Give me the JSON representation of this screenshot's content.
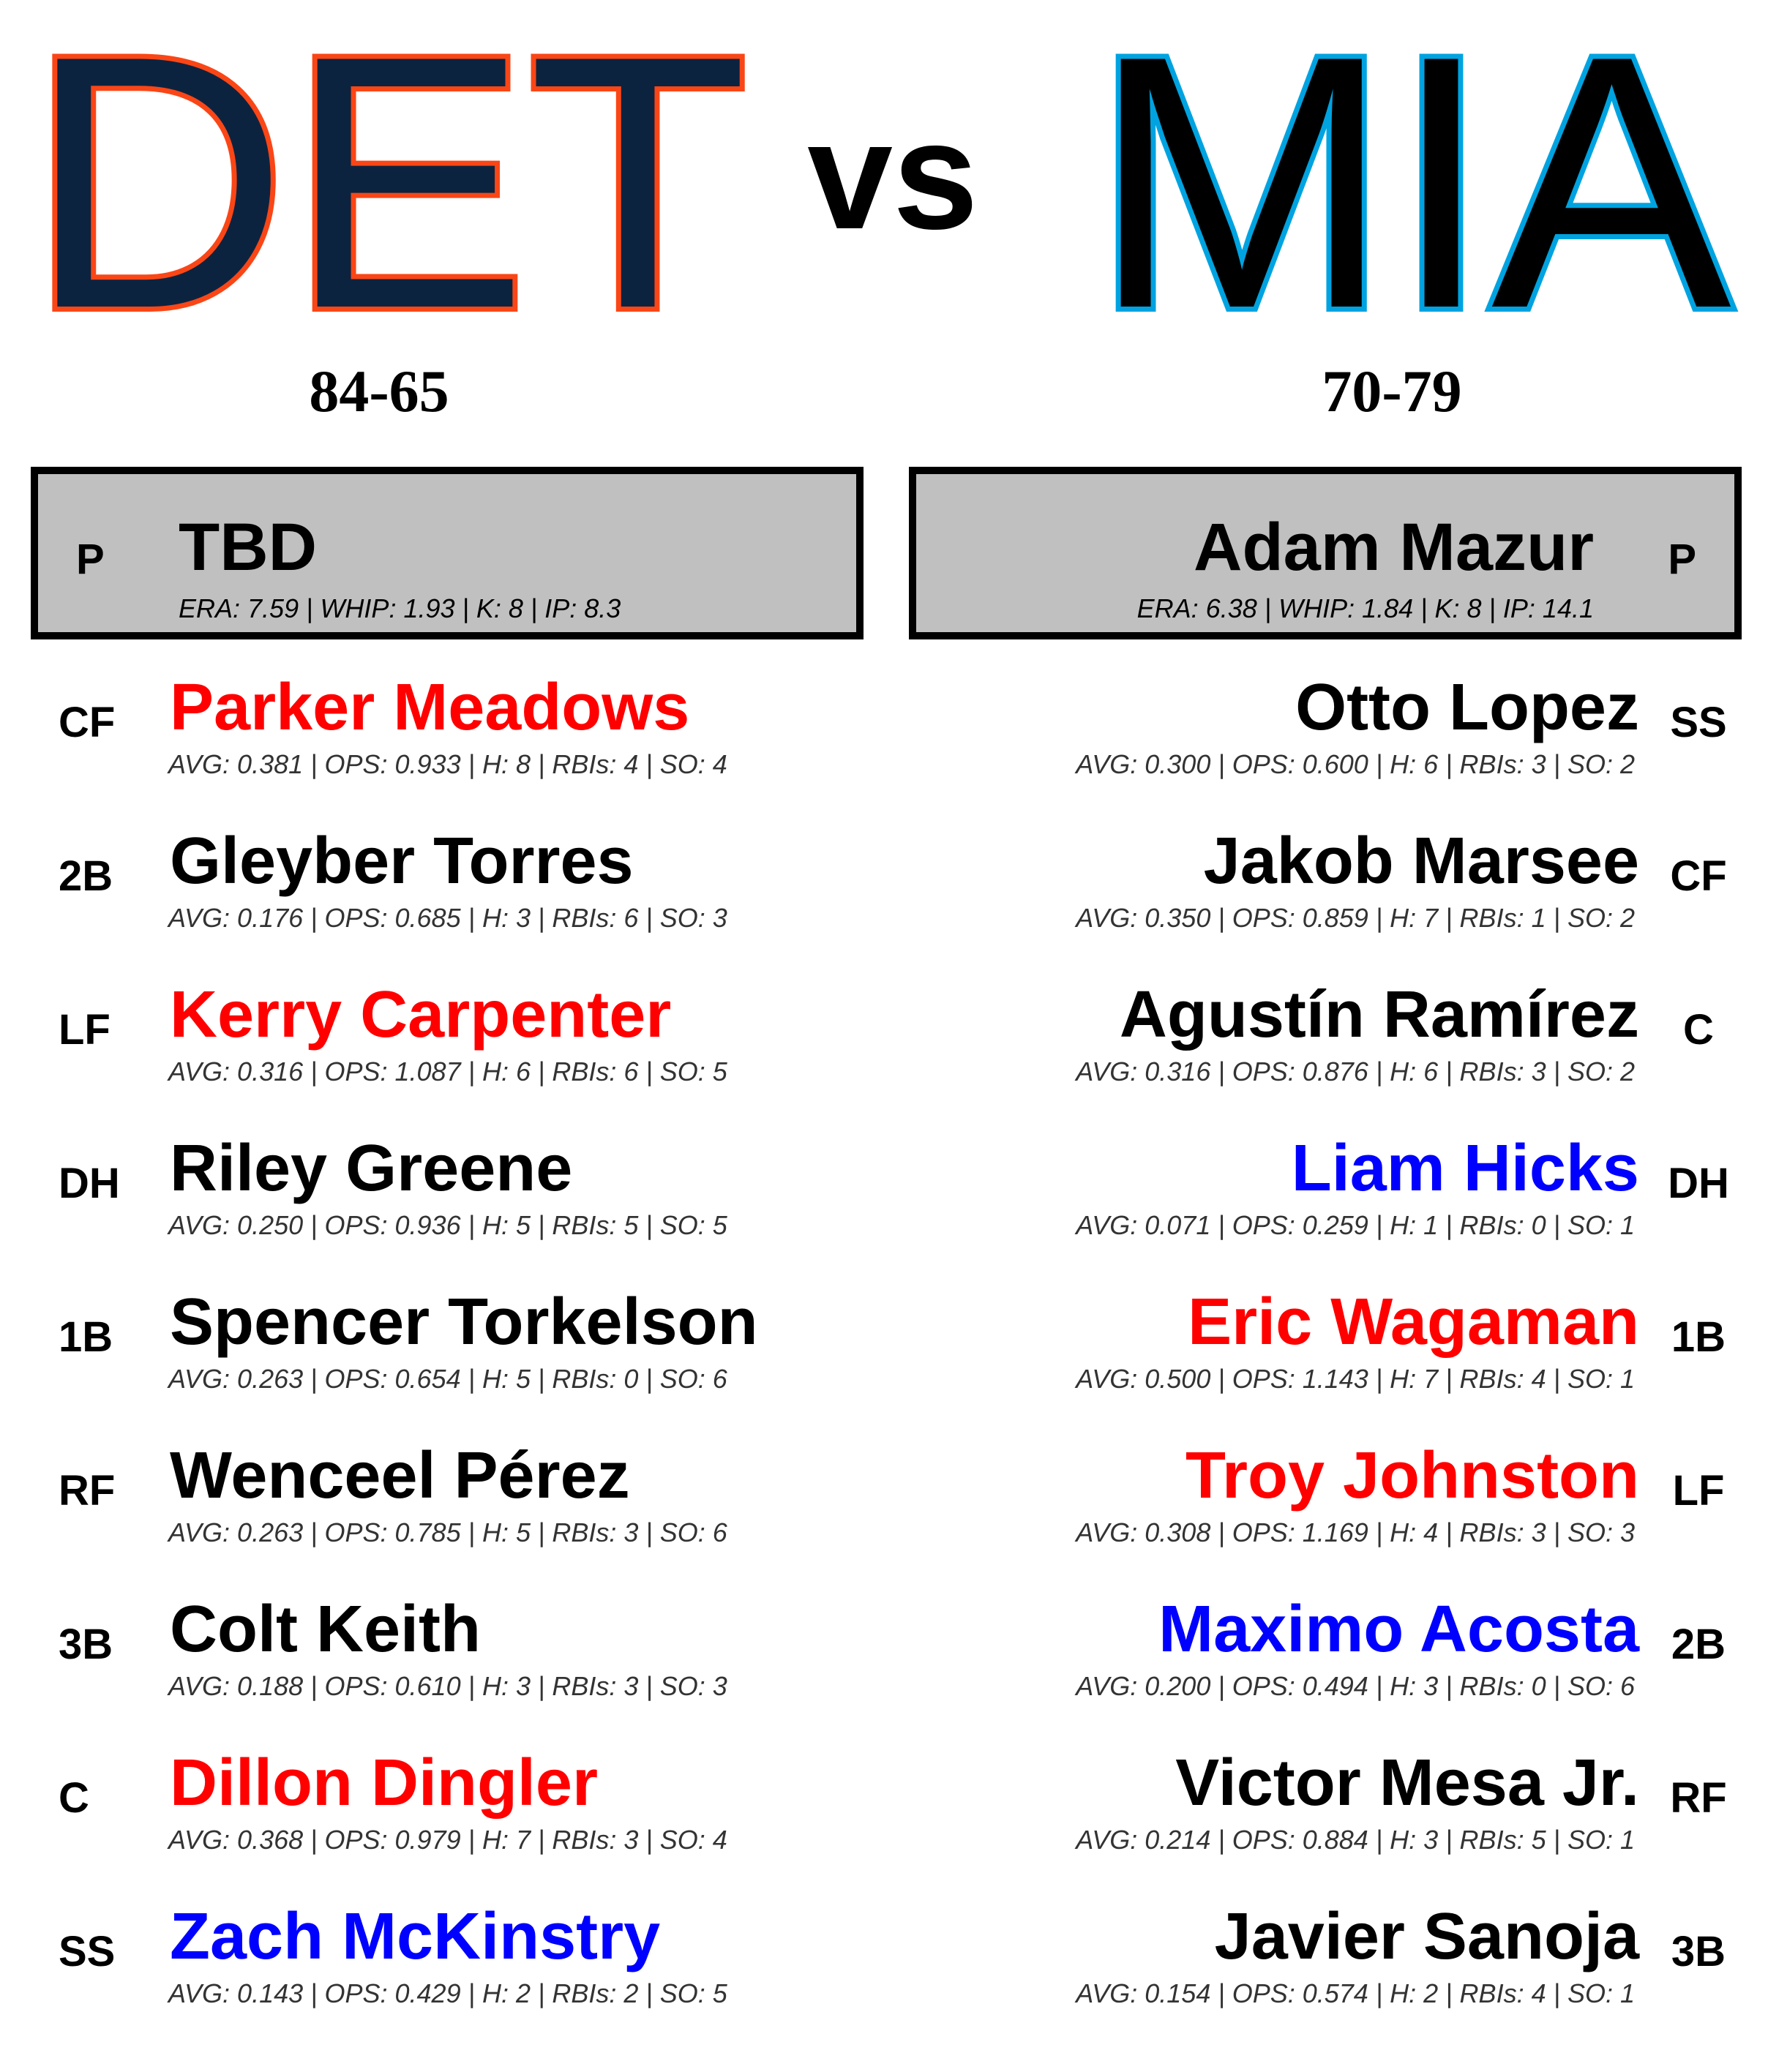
{
  "header": {
    "vs_label": "vs",
    "away": {
      "abbr": "DET",
      "record": "84-65",
      "fill_color": "#0C2340",
      "stroke_color": "#FA4616"
    },
    "home": {
      "abbr": "MIA",
      "record": "70-79",
      "fill_color": "#000000",
      "stroke_color": "#00A3E0"
    }
  },
  "pitchers": {
    "away": {
      "pos": "P",
      "name": "TBD",
      "stats": "ERA: 7.59 | WHIP: 1.93 | K: 8 | IP: 8.3"
    },
    "home": {
      "pos": "P",
      "name": "Adam Mazur",
      "stats": "ERA: 6.38 | WHIP: 1.84 | K: 8 | IP: 14.1"
    }
  },
  "colors": {
    "hot": "#FF0000",
    "cold": "#0000FF",
    "neutral": "#000000"
  },
  "lineups": {
    "away": [
      {
        "pos": "CF",
        "name": "Parker Meadows",
        "stats": "AVG: 0.381 | OPS: 0.933 | H: 8 | RBIs: 4 | SO: 4",
        "color": "#FF0000"
      },
      {
        "pos": "2B",
        "name": "Gleyber Torres",
        "stats": "AVG: 0.176 | OPS: 0.685 | H: 3 | RBIs: 6 | SO: 3",
        "color": "#000000"
      },
      {
        "pos": "LF",
        "name": "Kerry Carpenter",
        "stats": "AVG: 0.316 | OPS: 1.087 | H: 6 | RBIs: 6 | SO: 5",
        "color": "#FF0000"
      },
      {
        "pos": "DH",
        "name": "Riley Greene",
        "stats": "AVG: 0.250 | OPS: 0.936 | H: 5 | RBIs: 5 | SO: 5",
        "color": "#000000"
      },
      {
        "pos": "1B",
        "name": "Spencer Torkelson",
        "stats": "AVG: 0.263 | OPS: 0.654 | H: 5 | RBIs: 0 | SO: 6",
        "color": "#000000"
      },
      {
        "pos": "RF",
        "name": "Wenceel Pérez",
        "stats": "AVG: 0.263 | OPS: 0.785 | H: 5 | RBIs: 3 | SO: 6",
        "color": "#000000"
      },
      {
        "pos": "3B",
        "name": "Colt Keith",
        "stats": "AVG: 0.188 | OPS: 0.610 | H: 3 | RBIs: 3 | SO: 3",
        "color": "#000000"
      },
      {
        "pos": "C",
        "name": "Dillon Dingler",
        "stats": "AVG: 0.368 | OPS: 0.979 | H: 7 | RBIs: 3 | SO: 4",
        "color": "#FF0000"
      },
      {
        "pos": "SS",
        "name": "Zach McKinstry",
        "stats": "AVG: 0.143 | OPS: 0.429 | H: 2 | RBIs: 2 | SO: 5",
        "color": "#0000FF"
      }
    ],
    "home": [
      {
        "pos": "SS",
        "name": "Otto Lopez",
        "stats": "AVG: 0.300 | OPS: 0.600 | H: 6 | RBIs: 3 | SO: 2",
        "color": "#000000"
      },
      {
        "pos": "CF",
        "name": "Jakob Marsee",
        "stats": "AVG: 0.350 | OPS: 0.859 | H: 7 | RBIs: 1 | SO: 2",
        "color": "#000000"
      },
      {
        "pos": "C",
        "name": "Agustín Ramírez",
        "stats": "AVG: 0.316 | OPS: 0.876 | H: 6 | RBIs: 3 | SO: 2",
        "color": "#000000"
      },
      {
        "pos": "DH",
        "name": "Liam Hicks",
        "stats": "AVG: 0.071 | OPS: 0.259 | H: 1 | RBIs: 0 | SO: 1",
        "color": "#0000FF"
      },
      {
        "pos": "1B",
        "name": "Eric Wagaman",
        "stats": "AVG: 0.500 | OPS: 1.143 | H: 7 | RBIs: 4 | SO: 1",
        "color": "#FF0000"
      },
      {
        "pos": "LF",
        "name": "Troy Johnston",
        "stats": "AVG: 0.308 | OPS: 1.169 | H: 4 | RBIs: 3 | SO: 3",
        "color": "#FF0000"
      },
      {
        "pos": "2B",
        "name": "Maximo Acosta",
        "stats": "AVG: 0.200 | OPS: 0.494 | H: 3 | RBIs: 0 | SO: 6",
        "color": "#0000FF"
      },
      {
        "pos": "RF",
        "name": "Victor Mesa Jr.",
        "stats": "AVG: 0.214 | OPS: 0.884 | H: 3 | RBIs: 5 | SO: 1",
        "color": "#000000"
      },
      {
        "pos": "3B",
        "name": "Javier Sanoja",
        "stats": "AVG: 0.154 | OPS: 0.574 | H: 2 | RBIs: 4 | SO: 1",
        "color": "#000000"
      }
    ]
  }
}
